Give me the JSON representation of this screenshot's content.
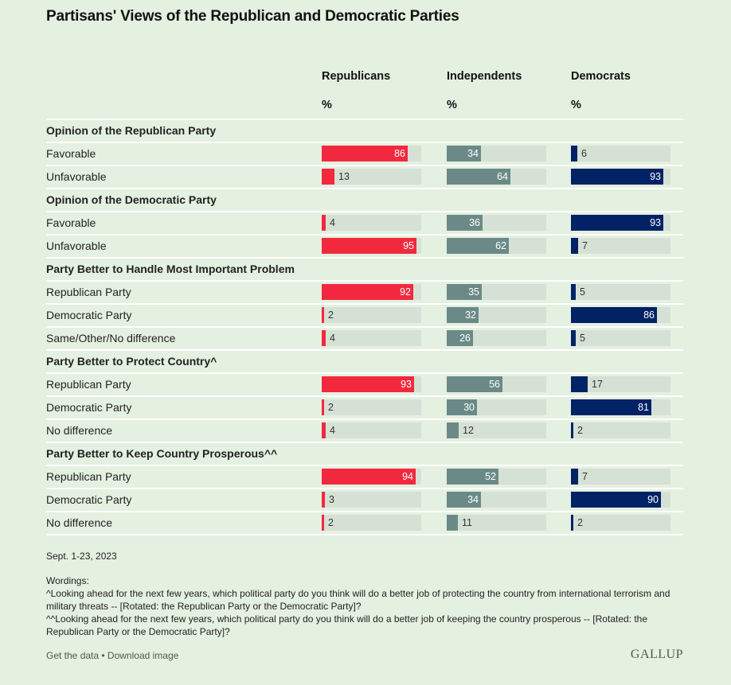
{
  "title": "Partisans' Views of the Republican and Democratic Parties",
  "columns": [
    {
      "label": "Republicans",
      "unit": "%",
      "color": "#f2293e"
    },
    {
      "label": "Independents",
      "unit": "%",
      "color": "#6b8a87"
    },
    {
      "label": "Democrats",
      "unit": "%",
      "color": "#012265"
    }
  ],
  "track_color": "#d6e1d5",
  "background_color": "#e4f0e0",
  "chart_data": {
    "type": "bar",
    "orientation": "horizontal",
    "title": "Partisans' Views of the Republican and Democratic Parties",
    "xlim": [
      0,
      100
    ],
    "unit": "%",
    "series_names": [
      "Republicans",
      "Independents",
      "Democrats"
    ],
    "sections": [
      {
        "heading": "Opinion of the Republican Party",
        "rows": [
          {
            "label": "Favorable",
            "values": [
              86,
              34,
              6
            ]
          },
          {
            "label": "Unfavorable",
            "values": [
              13,
              64,
              93
            ]
          }
        ]
      },
      {
        "heading": "Opinion of the Democratic Party",
        "rows": [
          {
            "label": "Favorable",
            "values": [
              4,
              36,
              93
            ]
          },
          {
            "label": "Unfavorable",
            "values": [
              95,
              62,
              7
            ]
          }
        ]
      },
      {
        "heading": "Party Better to Handle Most Important Problem",
        "rows": [
          {
            "label": "Republican Party",
            "values": [
              92,
              35,
              5
            ]
          },
          {
            "label": "Democratic Party",
            "values": [
              2,
              32,
              86
            ]
          },
          {
            "label": "Same/Other/No difference",
            "values": [
              4,
              26,
              5
            ]
          }
        ]
      },
      {
        "heading": "Party Better to Protect Country^",
        "rows": [
          {
            "label": "Republican Party",
            "values": [
              93,
              56,
              17
            ]
          },
          {
            "label": "Democratic Party",
            "values": [
              2,
              30,
              81
            ]
          },
          {
            "label": "No difference",
            "values": [
              4,
              12,
              2
            ]
          }
        ]
      },
      {
        "heading": "Party Better to Keep Country Prosperous^^",
        "rows": [
          {
            "label": "Republican Party",
            "values": [
              94,
              52,
              7
            ]
          },
          {
            "label": "Democratic Party",
            "values": [
              3,
              34,
              90
            ]
          },
          {
            "label": "No difference",
            "values": [
              2,
              11,
              2
            ]
          }
        ]
      }
    ]
  },
  "footer": {
    "date": "Sept. 1-23, 2023",
    "wordings_title": "Wordings:",
    "wording_1": "^Looking ahead for the next few years, which political party do you think will do a better job of protecting the country from international terrorism and military threats -- [Rotated: the Republican Party or the Democratic Party]?",
    "wording_2": "^^Looking ahead for the next few years, which political party do you think will do a better job of keeping the country prosperous -- [Rotated: the Republican Party or the Democratic Party]?",
    "get_data_label": "Get the data",
    "separator": " • ",
    "download_label": "Download image",
    "logo": "GALLUP"
  }
}
